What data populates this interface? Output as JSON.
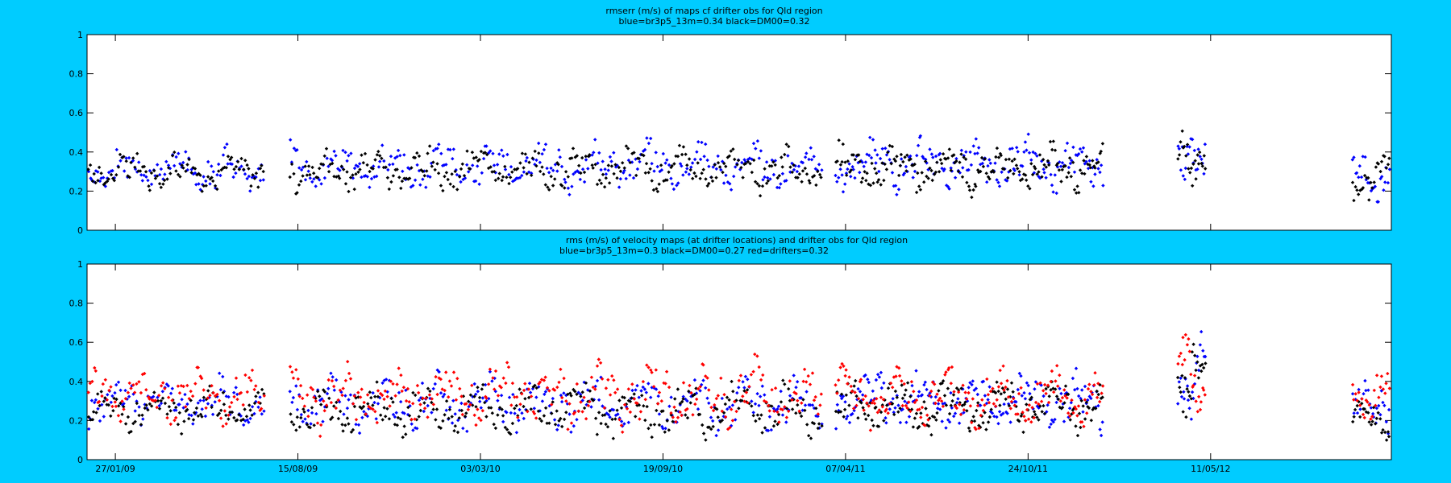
{
  "figure": {
    "background": "#00ccff"
  },
  "chart_data": [
    {
      "type": "scatter",
      "title_lines": [
        "rmserr (m/s) of maps cf drifter obs for Qld region",
        "blue=br3p5_13m=0.34 black=DM00=0.32"
      ],
      "xlabel": "",
      "ylabel": "",
      "xlim": [
        "2008-12-27",
        "2012-11-25"
      ],
      "ylim": [
        0,
        1
      ],
      "yticks": [
        "0",
        "0.2",
        "0.4",
        "0.6",
        "0.8",
        "1"
      ],
      "yticks_values": [
        0,
        0.2,
        0.4,
        0.6,
        0.8,
        1
      ],
      "xtick_dates": [
        "2009-01-27",
        "2009-08-15",
        "2010-03-03",
        "2010-09-19",
        "2011-04-07",
        "2011-10-24",
        "2012-05-11"
      ],
      "xtick_labels": [],
      "grid": false,
      "series": [
        {
          "color": "#0000ff",
          "segments": [
            {
              "start": "2008-12-28",
              "end": "2009-07-10",
              "mean": 0.31,
              "amp": 0.09,
              "n": 95,
              "seed": 11
            },
            {
              "start": "2009-08-06",
              "end": "2011-03-13",
              "mean": 0.33,
              "amp": 0.1,
              "n": 290,
              "seed": 12
            },
            {
              "start": "2011-03-27",
              "end": "2012-01-15",
              "mean": 0.34,
              "amp": 0.11,
              "n": 180,
              "seed": 13
            },
            {
              "start": "2012-04-05",
              "end": "2012-05-06",
              "mean": 0.42,
              "amp": 0.13,
              "n": 22,
              "seed": 14
            },
            {
              "start": "2012-10-13",
              "end": "2012-11-24",
              "mean": 0.29,
              "amp": 0.11,
              "n": 25,
              "seed": 15
            }
          ]
        },
        {
          "color": "#000000",
          "segments": [
            {
              "start": "2008-12-28",
              "end": "2009-07-10",
              "mean": 0.3,
              "amp": 0.08,
              "n": 95,
              "seed": 21
            },
            {
              "start": "2009-08-06",
              "end": "2011-03-13",
              "mean": 0.31,
              "amp": 0.09,
              "n": 290,
              "seed": 22
            },
            {
              "start": "2011-03-27",
              "end": "2012-01-15",
              "mean": 0.32,
              "amp": 0.1,
              "n": 180,
              "seed": 23
            },
            {
              "start": "2012-04-05",
              "end": "2012-05-06",
              "mean": 0.38,
              "amp": 0.13,
              "n": 22,
              "seed": 24
            },
            {
              "start": "2012-10-13",
              "end": "2012-11-24",
              "mean": 0.28,
              "amp": 0.12,
              "n": 25,
              "seed": 25
            }
          ]
        }
      ]
    },
    {
      "type": "scatter",
      "title_lines": [
        "rms (m/s) of velocity maps (at drifter locations) and drifter obs for Qld region",
        "blue=br3p5_13m=0.3  black=DM00=0.27 red=drifters=0.32"
      ],
      "xlabel": "",
      "ylabel": "",
      "xlim": [
        "2008-12-27",
        "2012-11-25"
      ],
      "ylim": [
        0,
        1
      ],
      "yticks": [
        "0",
        "0.2",
        "0.4",
        "0.6",
        "0.8",
        "1"
      ],
      "yticks_values": [
        0,
        0.2,
        0.4,
        0.6,
        0.8,
        1
      ],
      "xtick_dates": [
        "2009-01-27",
        "2009-08-15",
        "2010-03-03",
        "2010-09-19",
        "2011-04-07",
        "2011-10-24",
        "2012-05-11"
      ],
      "xtick_labels": [
        "27/01/09",
        "15/08/09",
        "03/03/10",
        "19/09/10",
        "07/04/11",
        "24/10/11",
        "11/05/12"
      ],
      "grid": false,
      "series": [
        {
          "color": "#0000ff",
          "segments": [
            {
              "start": "2008-12-28",
              "end": "2009-07-10",
              "mean": 0.29,
              "amp": 0.1,
              "n": 95,
              "seed": 31
            },
            {
              "start": "2009-08-06",
              "end": "2011-03-13",
              "mean": 0.29,
              "amp": 0.12,
              "n": 290,
              "seed": 32
            },
            {
              "start": "2011-03-27",
              "end": "2012-01-15",
              "mean": 0.3,
              "amp": 0.12,
              "n": 180,
              "seed": 33
            },
            {
              "start": "2012-04-05",
              "end": "2012-05-06",
              "mean": 0.45,
              "amp": 0.2,
              "n": 22,
              "seed": 34
            },
            {
              "start": "2012-10-13",
              "end": "2012-11-24",
              "mean": 0.28,
              "amp": 0.12,
              "n": 25,
              "seed": 35
            }
          ]
        },
        {
          "color": "#000000",
          "segments": [
            {
              "start": "2008-12-28",
              "end": "2009-07-10",
              "mean": 0.26,
              "amp": 0.09,
              "n": 95,
              "seed": 41
            },
            {
              "start": "2009-08-06",
              "end": "2011-03-13",
              "mean": 0.25,
              "amp": 0.11,
              "n": 290,
              "seed": 42
            },
            {
              "start": "2011-03-27",
              "end": "2012-01-15",
              "mean": 0.27,
              "amp": 0.11,
              "n": 180,
              "seed": 43
            },
            {
              "start": "2012-04-05",
              "end": "2012-05-06",
              "mean": 0.38,
              "amp": 0.18,
              "n": 22,
              "seed": 44
            },
            {
              "start": "2012-10-13",
              "end": "2012-11-24",
              "mean": 0.2,
              "amp": 0.07,
              "n": 25,
              "seed": 45
            }
          ]
        },
        {
          "color": "#ff0000",
          "segments": [
            {
              "start": "2008-12-28",
              "end": "2009-07-10",
              "mean": 0.33,
              "amp": 0.11,
              "n": 95,
              "seed": 51
            },
            {
              "start": "2009-08-06",
              "end": "2011-03-13",
              "mean": 0.33,
              "amp": 0.14,
              "n": 290,
              "seed": 52
            },
            {
              "start": "2011-03-27",
              "end": "2012-01-15",
              "mean": 0.32,
              "amp": 0.12,
              "n": 180,
              "seed": 53
            },
            {
              "start": "2012-04-05",
              "end": "2012-05-06",
              "mean": 0.45,
              "amp": 0.18,
              "n": 22,
              "seed": 54
            },
            {
              "start": "2012-10-13",
              "end": "2012-11-24",
              "mean": 0.35,
              "amp": 0.12,
              "n": 25,
              "seed": 55
            }
          ]
        }
      ]
    }
  ]
}
